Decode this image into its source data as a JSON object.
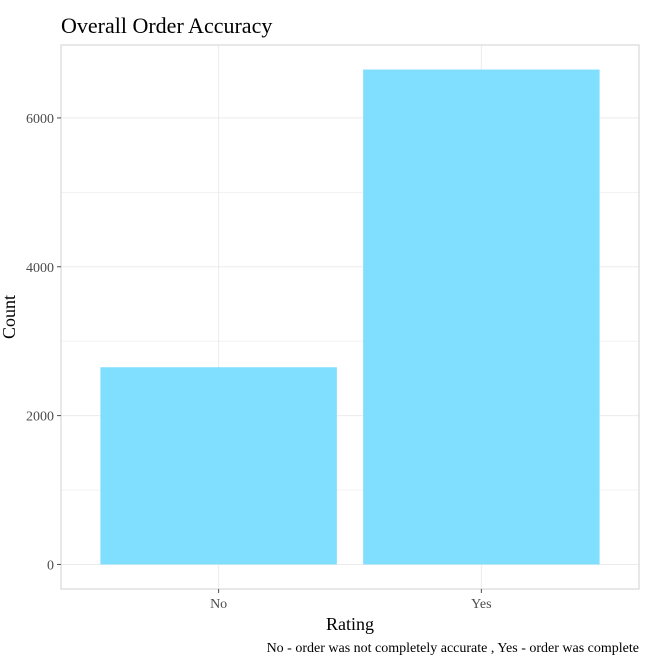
{
  "chart_data": {
    "type": "bar",
    "title": "Overall Order Accuracy",
    "xlabel": "Rating",
    "ylabel": "Count",
    "categories": [
      "No",
      "Yes"
    ],
    "values": [
      2650,
      6650
    ],
    "ylim": [
      -330,
      6980
    ],
    "yticks": [
      0,
      2000,
      4000,
      6000
    ],
    "ytick_labels": [
      "0",
      "2000",
      "4000",
      "6000"
    ],
    "grid": true,
    "legend": "none",
    "caption": "No - order was not completely  accurate , Yes - order was complete",
    "colors": {
      "bar": "#80dfff",
      "grid": "#ebebeb",
      "panel_border": "#d0d0d0",
      "tick": "#4d4d4d"
    }
  }
}
